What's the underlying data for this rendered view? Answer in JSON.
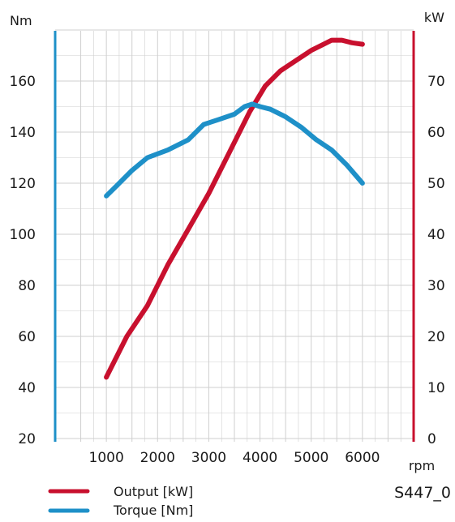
{
  "chart_data": {
    "type": "line",
    "left_unit": "Nm",
    "right_unit": "kW",
    "x_unit": "rpm",
    "x_ticks": [
      1000,
      2000,
      3000,
      4000,
      5000,
      6000
    ],
    "x_tick_labels": [
      "1000",
      "2000",
      "3000",
      "4000",
      "5000",
      "6000"
    ],
    "left_ticks": [
      20,
      40,
      60,
      80,
      100,
      120,
      140,
      160
    ],
    "left_tick_labels": [
      "20",
      "40",
      "60",
      "80",
      "100",
      "120",
      "140",
      "160"
    ],
    "right_ticks": [
      0,
      10,
      20,
      30,
      40,
      50,
      60,
      70
    ],
    "right_tick_labels": [
      "0",
      "10",
      "20",
      "30",
      "40",
      "50",
      "60",
      "70"
    ],
    "xlim": [
      0,
      7000
    ],
    "left_ylim": [
      20,
      180
    ],
    "right_ylim": [
      0,
      80
    ],
    "grid": true,
    "legend_position": "bottom-left",
    "series": [
      {
        "name": "Output [kW]",
        "axis": "right",
        "color": "#c8102e",
        "x": [
          1000,
          1400,
          1800,
          2200,
          2600,
          3000,
          3400,
          3800,
          4100,
          4400,
          4700,
          5000,
          5200,
          5400,
          5600,
          5800,
          6000
        ],
        "values": [
          12,
          20,
          26,
          34,
          41,
          48,
          56,
          64,
          69,
          72,
          74,
          76,
          77,
          78,
          78,
          77.5,
          77.2
        ]
      },
      {
        "name": "Torque [Nm]",
        "axis": "left",
        "color": "#1e90c8",
        "x": [
          1000,
          1200,
          1500,
          1800,
          2200,
          2600,
          2900,
          3200,
          3500,
          3700,
          3850,
          4000,
          4200,
          4500,
          4800,
          5100,
          5400,
          5700,
          6000
        ],
        "values": [
          115,
          119,
          125,
          130,
          133,
          137,
          143,
          145,
          147,
          150,
          151,
          150,
          149,
          146,
          142,
          137,
          133,
          127,
          120
        ]
      }
    ],
    "legend": [
      {
        "label": "Output [kW]",
        "color": "#c8102e"
      },
      {
        "label": "Torque [Nm]",
        "color": "#1e90c8"
      }
    ],
    "code": "S447_0"
  }
}
